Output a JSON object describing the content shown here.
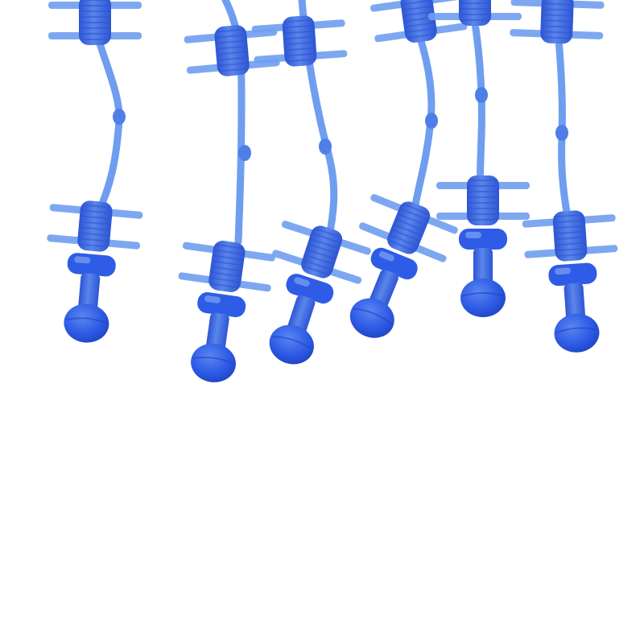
{
  "photo": {
    "subject": "blue-plastic-spreader-strands",
    "strand_count": 6,
    "colors": {
      "background": "#ffffff",
      "stem_light": "#6f9ef0",
      "stem_mid": "#4f7fe6",
      "body": "#3f6fe0",
      "body_dark": "#2d55d4",
      "head": "#2f5ce6",
      "head_shadow": "#1f44c4",
      "highlight": "#9fc0f8"
    }
  }
}
